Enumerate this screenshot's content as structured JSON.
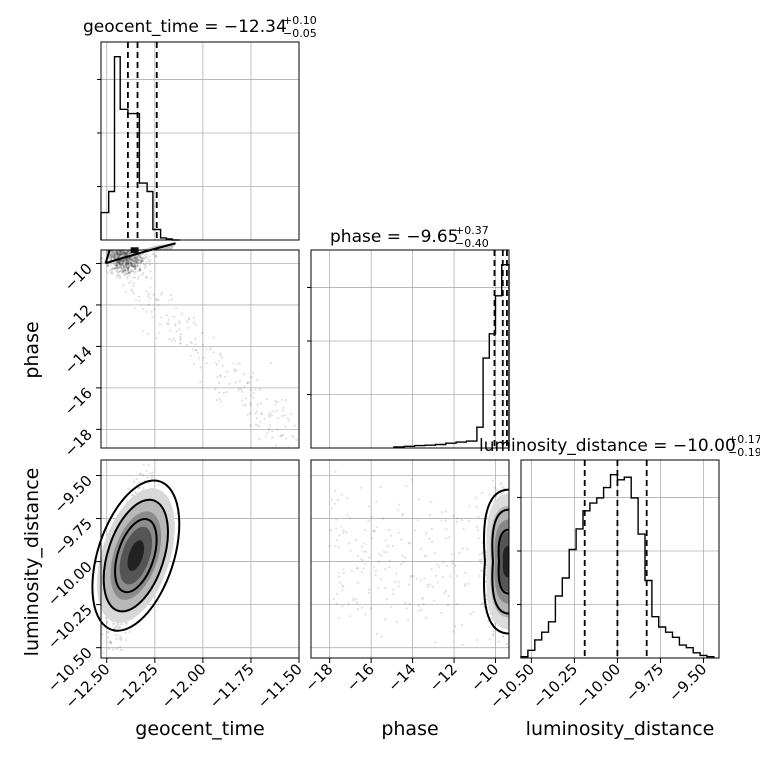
{
  "chart_data": {
    "type": "corner",
    "parameters": [
      "geocent_time",
      "phase",
      "luminosity_distance"
    ],
    "axis_labels": {
      "x": [
        "geocent_time",
        "phase",
        "luminosity_distance"
      ],
      "y": [
        "phase",
        "luminosity_distance"
      ]
    },
    "ranges": {
      "geocent_time": [
        -12.53,
        -11.5
      ],
      "phase": [
        -18.9,
        -9.35
      ],
      "luminosity_distance": [
        -10.56,
        -9.41
      ]
    },
    "ticks": {
      "geocent_time": [
        -12.5,
        -12.25,
        -12.0,
        -11.75,
        -11.5
      ],
      "phase": [
        -18,
        -16,
        -14,
        -12,
        -10
      ],
      "luminosity_distance": [
        -10.5,
        -10.25,
        -10.0,
        -9.75,
        -9.5
      ]
    },
    "tick_labels": {
      "geocent_time": [
        "−12.50",
        "−12.25",
        "−12.00",
        "−11.75",
        "−11.50"
      ],
      "phase_x": [
        "−18",
        "−16",
        "−14",
        "−12",
        "−10"
      ],
      "phase_y": [
        "−10",
        "−12",
        "−14",
        "−16",
        "−18"
      ],
      "luminosity_distance": [
        "−10.50",
        "−10.25",
        "−10.00",
        "−9.75",
        "−9.50"
      ]
    },
    "titles": {
      "geocent_time": {
        "prefix": "geocent_time = −12.34",
        "plus": "+0.10",
        "minus": "−0.05"
      },
      "phase": {
        "prefix": "phase = −9.65",
        "plus": "+0.37",
        "minus": "−0.40"
      },
      "luminosity_distance": {
        "prefix": "luminosity_distance = −10.00",
        "plus": "+0.17",
        "minus": "−0.19"
      }
    },
    "histograms": {
      "geocent_time": {
        "bins": [
          -12.53,
          -12.49,
          -12.46,
          -12.43,
          -12.39,
          -12.36,
          -12.33,
          -12.29,
          -12.26,
          -12.22,
          -12.19,
          -12.16,
          -12.12
        ],
        "values": [
          0.13,
          0.23,
          0.87,
          0.62,
          0.6,
          0.6,
          0.27,
          0.23,
          0.05,
          0.01,
          0.005,
          0.0
        ],
        "quantiles": [
          -12.39,
          -12.34,
          -12.24
        ]
      },
      "phase": {
        "bins": [
          -14.9,
          -14.4,
          -13.9,
          -13.4,
          -12.9,
          -12.4,
          -11.9,
          -11.4,
          -10.9,
          -10.6,
          -10.3,
          -10.0,
          -9.7,
          -9.35
        ],
        "values": [
          0.003,
          0.005,
          0.007,
          0.008,
          0.01,
          0.014,
          0.017,
          0.02,
          0.06,
          0.26,
          0.33,
          0.44,
          0.53
        ],
        "quantiles": [
          -10.05,
          -9.65,
          -9.45
        ]
      },
      "luminosity_distance": {
        "bins": [
          -10.56,
          -10.52,
          -10.48,
          -10.44,
          -10.4,
          -10.36,
          -10.32,
          -10.28,
          -10.24,
          -10.2,
          -10.16,
          -10.12,
          -10.08,
          -10.04,
          -10.0,
          -9.96,
          -9.92,
          -9.88,
          -9.84,
          -9.8,
          -9.76,
          -9.72,
          -9.68,
          -9.64,
          -9.6,
          -9.56,
          -9.52,
          -9.48,
          -9.44
        ],
        "values": [
          0.005,
          0.03,
          0.07,
          0.1,
          0.14,
          0.24,
          0.31,
          0.42,
          0.5,
          0.57,
          0.6,
          0.62,
          0.66,
          0.71,
          0.69,
          0.7,
          0.62,
          0.48,
          0.3,
          0.16,
          0.12,
          0.1,
          0.08,
          0.05,
          0.04,
          0.02,
          0.01,
          0.005
        ],
        "quantiles": [
          -10.19,
          -10.0,
          -9.83
        ]
      }
    },
    "grid": true
  }
}
